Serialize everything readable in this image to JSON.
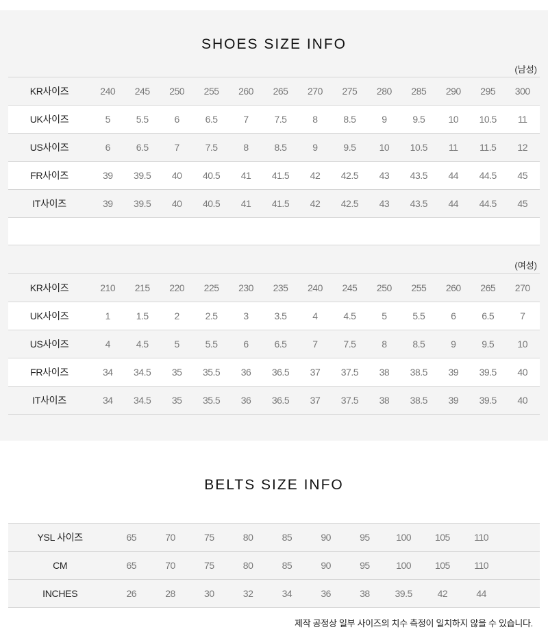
{
  "shoes": {
    "title": "SHOES SIZE INFO",
    "men": {
      "note": "(남성)",
      "rows": [
        {
          "label": "KR사이즈",
          "values": [
            "240",
            "245",
            "250",
            "255",
            "260",
            "265",
            "270",
            "275",
            "280",
            "285",
            "290",
            "295",
            "300"
          ]
        },
        {
          "label": "UK사이즈",
          "values": [
            "5",
            "5.5",
            "6",
            "6.5",
            "7",
            "7.5",
            "8",
            "8.5",
            "9",
            "9.5",
            "10",
            "10.5",
            "11"
          ]
        },
        {
          "label": "US사이즈",
          "values": [
            "6",
            "6.5",
            "7",
            "7.5",
            "8",
            "8.5",
            "9",
            "9.5",
            "10",
            "10.5",
            "11",
            "11.5",
            "12"
          ]
        },
        {
          "label": "FR사이즈",
          "values": [
            "39",
            "39.5",
            "40",
            "40.5",
            "41",
            "41.5",
            "42",
            "42.5",
            "43",
            "43.5",
            "44",
            "44.5",
            "45"
          ]
        },
        {
          "label": "IT사이즈",
          "values": [
            "39",
            "39.5",
            "40",
            "40.5",
            "41",
            "41.5",
            "42",
            "42.5",
            "43",
            "43.5",
            "44",
            "44.5",
            "45"
          ]
        }
      ]
    },
    "women": {
      "note": "(여성)",
      "rows": [
        {
          "label": "KR사이즈",
          "values": [
            "210",
            "215",
            "220",
            "225",
            "230",
            "235",
            "240",
            "245",
            "250",
            "255",
            "260",
            "265",
            "270"
          ]
        },
        {
          "label": "UK사이즈",
          "values": [
            "1",
            "1.5",
            "2",
            "2.5",
            "3",
            "3.5",
            "4",
            "4.5",
            "5",
            "5.5",
            "6",
            "6.5",
            "7"
          ]
        },
        {
          "label": "US사이즈",
          "values": [
            "4",
            "4.5",
            "5",
            "5.5",
            "6",
            "6.5",
            "7",
            "7.5",
            "8",
            "8.5",
            "9",
            "9.5",
            "10"
          ]
        },
        {
          "label": "FR사이즈",
          "values": [
            "34",
            "34.5",
            "35",
            "35.5",
            "36",
            "36.5",
            "37",
            "37.5",
            "38",
            "38.5",
            "39",
            "39.5",
            "40"
          ]
        },
        {
          "label": "IT사이즈",
          "values": [
            "34",
            "34.5",
            "35",
            "35.5",
            "36",
            "36.5",
            "37",
            "37.5",
            "38",
            "38.5",
            "39",
            "39.5",
            "40"
          ]
        }
      ]
    }
  },
  "belts": {
    "title": "BELTS SIZE INFO",
    "rows": [
      {
        "label": "YSL 사이즈",
        "values": [
          "65",
          "70",
          "75",
          "80",
          "85",
          "90",
          "95",
          "100",
          "105",
          "110"
        ]
      },
      {
        "label": "CM",
        "values": [
          "65",
          "70",
          "75",
          "80",
          "85",
          "90",
          "95",
          "100",
          "105",
          "110"
        ]
      },
      {
        "label": "INCHES",
        "values": [
          "26",
          "28",
          "30",
          "32",
          "34",
          "36",
          "38",
          "39.5",
          "42",
          "44"
        ]
      }
    ],
    "footnote": "제작 공정상 일부 사이즈의 치수 측정이 일치하지 않을 수 있습니다."
  }
}
